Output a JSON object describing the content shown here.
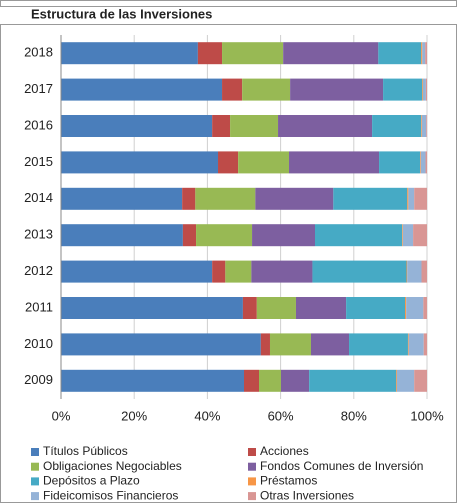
{
  "chart_data": {
    "type": "stacked-barh",
    "title": "Estructura de las Inversiones",
    "categories": [
      "2018",
      "2017",
      "2016",
      "2015",
      "2014",
      "2013",
      "2012",
      "2011",
      "2010",
      "2009"
    ],
    "series": [
      {
        "name": "Títulos Públicos",
        "color": "#4a7ebb",
        "values": [
          37.4,
          44,
          41.3,
          42.9,
          33.1,
          33.3,
          41.3,
          49.7,
          54.6,
          50
        ]
      },
      {
        "name": "Acciones",
        "color": "#be4b48",
        "values": [
          6.6,
          5.5,
          4.9,
          5.5,
          3.6,
          3.6,
          3.6,
          3.8,
          2.5,
          4.1
        ]
      },
      {
        "name": "Obligaciones Negociables",
        "color": "#98b954",
        "values": [
          16.7,
          13.1,
          13.1,
          13.9,
          16.4,
          15.3,
          7.1,
          10.7,
          11.2,
          6
        ]
      },
      {
        "name": "Fondos Comunes de Inversión",
        "color": "#7d5fa0",
        "values": [
          26,
          25.4,
          25.7,
          24.6,
          21.3,
          17.2,
          16.7,
          13.7,
          10.4,
          7.7
        ]
      },
      {
        "name": "Depósitos a Plazo",
        "color": "#46aac5",
        "values": [
          11.7,
          10.7,
          13.4,
          11.2,
          20.2,
          23.8,
          25.7,
          16.1,
          16.1,
          23.8
        ]
      },
      {
        "name": "Préstamos",
        "color": "#f79646",
        "values": [
          0.3,
          0.2,
          0.2,
          0.2,
          0.3,
          0.2,
          0.2,
          0.3,
          0.2,
          0.2
        ]
      },
      {
        "name": "Fideicomisos Financieros",
        "color": "#95b3d7",
        "values": [
          0.8,
          0.8,
          1.2,
          1.3,
          1.6,
          2.8,
          3.9,
          4.7,
          4.1,
          4.7
        ]
      },
      {
        "name": "Otras Inversiones",
        "color": "#d99694",
        "values": [
          0.5,
          0.3,
          0.2,
          0.4,
          3.5,
          3.8,
          1.5,
          1.0,
          0.9,
          3.5
        ]
      }
    ],
    "xlim": [
      0,
      100
    ],
    "xticks": [
      {
        "value": 0,
        "label": "0%"
      },
      {
        "value": 20,
        "label": "20%"
      },
      {
        "value": 40,
        "label": "40%"
      },
      {
        "value": 60,
        "label": "60%"
      },
      {
        "value": 80,
        "label": "80%"
      },
      {
        "value": 100,
        "label": "100%"
      }
    ],
    "grid": true
  }
}
